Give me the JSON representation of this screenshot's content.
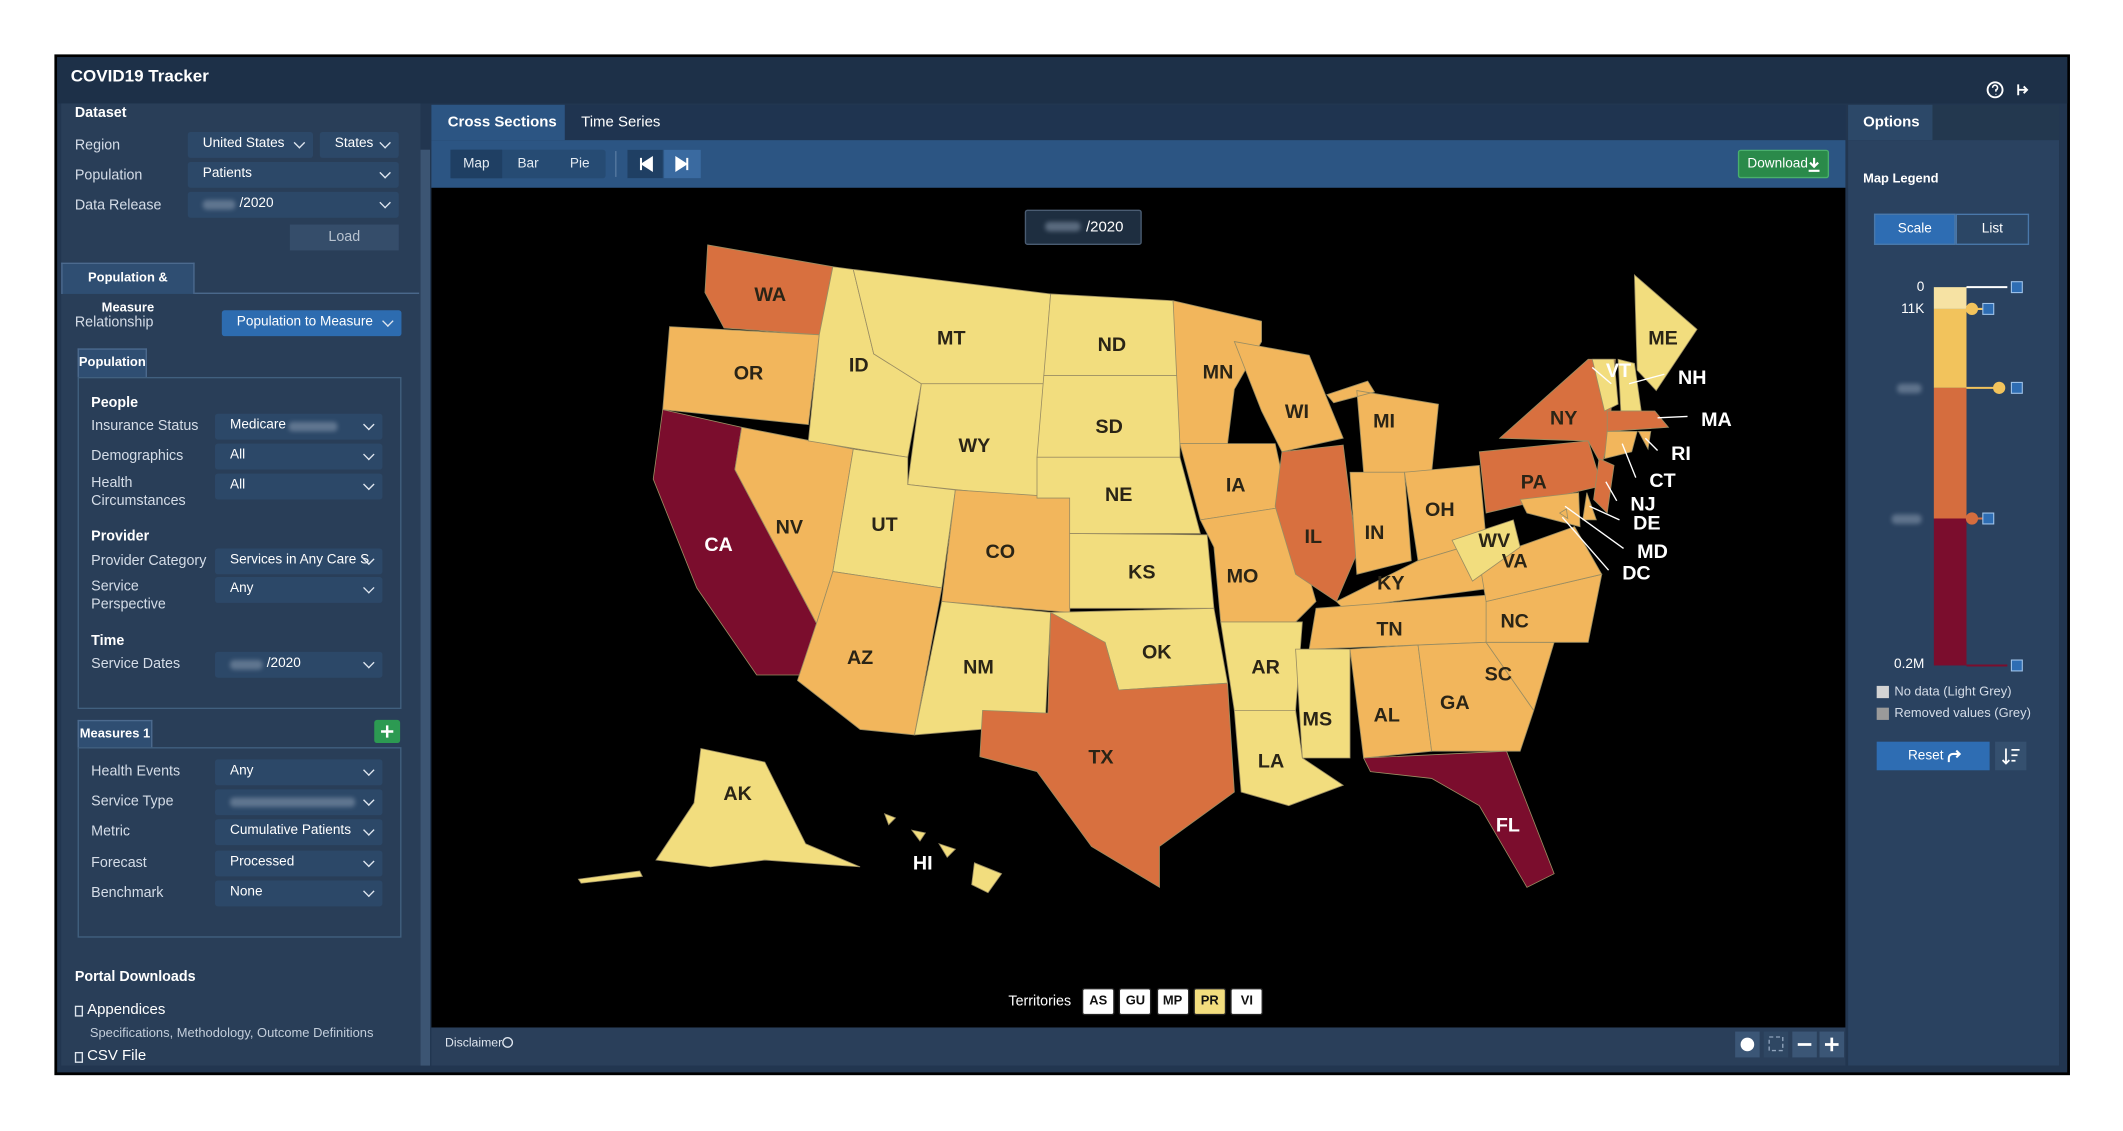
{
  "header": {
    "title": "COVID19 Tracker"
  },
  "dataset": {
    "title": "Dataset",
    "rows": [
      {
        "label": "Region",
        "values": [
          "United States",
          "States"
        ]
      },
      {
        "label": "Population",
        "values": [
          "Patients"
        ]
      },
      {
        "label": "Data Release",
        "values": [
          "/2020"
        ]
      }
    ],
    "load": "Load"
  },
  "pm_tab": "Population & Measure",
  "relationship": {
    "label": "Relationship",
    "value": "Population to Measure"
  },
  "population": {
    "tab": "Population",
    "groups": [
      {
        "title": "People",
        "rows": [
          {
            "label": "Insurance Status",
            "value": "Medicare"
          },
          {
            "label": "Demographics",
            "value": "All"
          },
          {
            "label": "Health Circumstances",
            "value": "All"
          }
        ]
      },
      {
        "title": "Provider",
        "rows": [
          {
            "label": "Provider Category",
            "value": "Services in Any Care S"
          },
          {
            "label": "Service Perspective",
            "value": "Any"
          }
        ]
      },
      {
        "title": "Time",
        "rows": [
          {
            "label": "Service Dates",
            "value": "/2020"
          }
        ]
      }
    ]
  },
  "measures": {
    "tab": "Measures 1",
    "rows": [
      {
        "label": "Health Events",
        "value": "Any"
      },
      {
        "label": "Service Type"
      },
      {
        "label": "Metric",
        "value": "Cumulative Patients"
      },
      {
        "label": "Forecast",
        "value": "Processed"
      },
      {
        "label": "Benchmark",
        "value": "None"
      }
    ]
  },
  "portal": {
    "title": "Portal Downloads",
    "links": [
      {
        "label": "Appendices",
        "note": "Specifications, Methodology, Outcome Definitions"
      },
      {
        "label": "CSV File"
      }
    ]
  },
  "center_tabs": [
    "Cross Sections",
    "Time Series"
  ],
  "view_buttons": [
    "Map",
    "Bar",
    "Pie"
  ],
  "download": "Download",
  "map": {
    "date": "/2020",
    "states": [
      {
        "label": "WA",
        "color": "#d8703f"
      },
      {
        "label": "OR",
        "color": "#f2b65c"
      },
      {
        "label": "CA",
        "color": "#7b0d2d"
      },
      {
        "label": "NV",
        "color": "#f2b65c"
      },
      {
        "label": "ID",
        "color": "#f2dd7e"
      },
      {
        "label": "MT",
        "color": "#f2dd7e"
      },
      {
        "label": "WY",
        "color": "#f2dd7e"
      },
      {
        "label": "UT",
        "color": "#f2dd7e"
      },
      {
        "label": "AZ",
        "color": "#f2b65c"
      },
      {
        "label": "CO",
        "color": "#f2b65c"
      },
      {
        "label": "NM",
        "color": "#f2dd7e"
      },
      {
        "label": "ND",
        "color": "#f2dd7e"
      },
      {
        "label": "SD",
        "color": "#f2dd7e"
      },
      {
        "label": "NE",
        "color": "#f2dd7e"
      },
      {
        "label": "KS",
        "color": "#f2dd7e"
      },
      {
        "label": "OK",
        "color": "#f2dd7e"
      },
      {
        "label": "TX",
        "color": "#d8703f"
      },
      {
        "label": "MN",
        "color": "#f2b65c"
      },
      {
        "label": "IA",
        "color": "#f2b65c"
      },
      {
        "label": "MO",
        "color": "#f2b65c"
      },
      {
        "label": "AR",
        "color": "#f2dd7e"
      },
      {
        "label": "LA",
        "color": "#f2dd7e"
      },
      {
        "label": "WI",
        "color": "#f2b65c"
      },
      {
        "label": "IL",
        "color": "#d8703f"
      },
      {
        "label": "MI",
        "color": "#f2b65c"
      },
      {
        "label": "IN",
        "color": "#f2b65c"
      },
      {
        "label": "OH",
        "color": "#f2b65c"
      },
      {
        "label": "KY",
        "color": "#f2b65c"
      },
      {
        "label": "TN",
        "color": "#f2b65c"
      },
      {
        "label": "MS",
        "color": "#f2dd7e"
      },
      {
        "label": "AL",
        "color": "#f2b65c"
      },
      {
        "label": "GA",
        "color": "#f2b65c"
      },
      {
        "label": "FL",
        "color": "#7b0d2d"
      },
      {
        "label": "SC",
        "color": "#f2b65c"
      },
      {
        "label": "NC",
        "color": "#f2b65c"
      },
      {
        "label": "VA",
        "color": "#f2b65c"
      },
      {
        "label": "WV",
        "color": "#f2dd7e"
      },
      {
        "label": "PA",
        "color": "#d8703f"
      },
      {
        "label": "NY",
        "color": "#d8703f"
      },
      {
        "label": "VT",
        "color": "#f2dd7e"
      },
      {
        "label": "NH",
        "color": "#f2dd7e"
      },
      {
        "label": "ME",
        "color": "#f2dd7e"
      },
      {
        "label": "MA",
        "color": "#d8703f"
      },
      {
        "label": "CT",
        "color": "#f2b65c"
      },
      {
        "label": "RI",
        "color": "#f2b65c"
      },
      {
        "label": "NJ",
        "color": "#d8703f"
      },
      {
        "label": "DE",
        "color": "#f2b65c"
      },
      {
        "label": "MD",
        "color": "#f2b65c"
      },
      {
        "label": "DC",
        "color": "#f2b65c"
      },
      {
        "label": "AK",
        "color": "#f2dd7e"
      },
      {
        "label": "HI",
        "color": "#f2dd7e"
      }
    ],
    "territories_label": "Territories",
    "territories": [
      {
        "label": "AS",
        "color": "#ffffff"
      },
      {
        "label": "GU",
        "color": "#ffffff"
      },
      {
        "label": "MP",
        "color": "#ffffff"
      },
      {
        "label": "PR",
        "color": "#f2dd7e"
      },
      {
        "label": "VI",
        "color": "#ffffff"
      }
    ]
  },
  "footer": {
    "disclaimer": "Disclaimer"
  },
  "options": {
    "tab": "Options",
    "legend_title": "Map Legend",
    "toggle": [
      "Scale",
      "List"
    ],
    "scale_labels": [
      "0",
      "11K",
      "0.2M"
    ],
    "notes": [
      "No data (Light Grey)",
      "Removed values (Grey)"
    ],
    "reset": "Reset"
  }
}
